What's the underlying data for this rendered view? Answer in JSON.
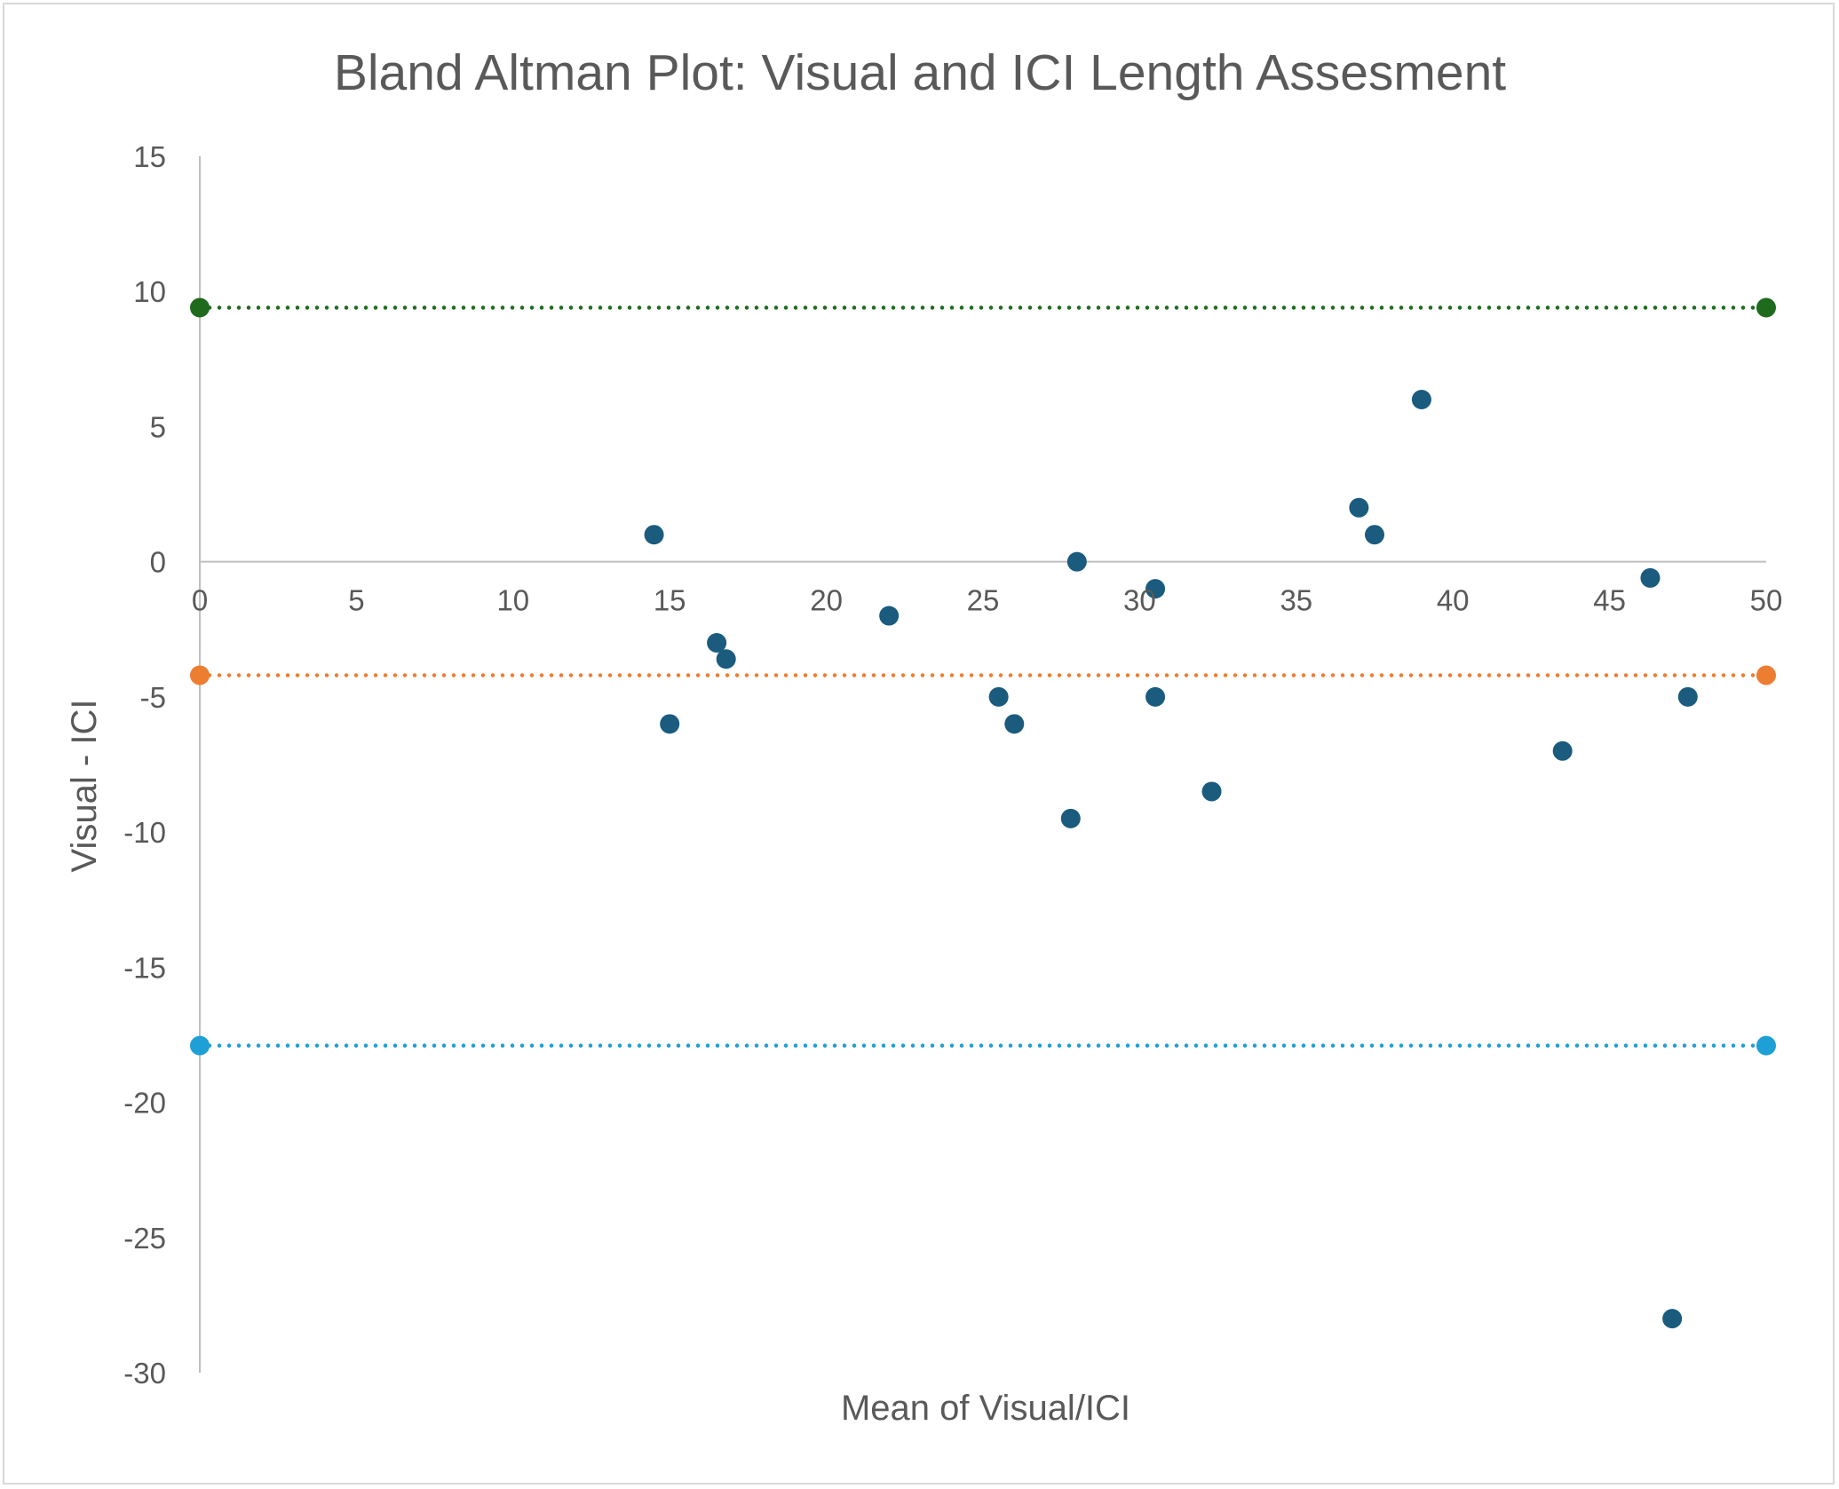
{
  "chart_data": {
    "type": "scatter",
    "title": "Bland Altman Plot: Visual and ICI Length Assesment",
    "xlabel": "Mean of Visual/ICI",
    "ylabel": "Visual - ICI",
    "xlim": [
      0,
      50
    ],
    "ylim": [
      -30,
      15
    ],
    "x_ticks": [
      0,
      5,
      10,
      15,
      20,
      25,
      30,
      35,
      40,
      45,
      50
    ],
    "y_ticks": [
      15,
      10,
      5,
      0,
      -5,
      -10,
      -15,
      -20,
      -25,
      -30
    ],
    "grid": false,
    "legend": "none",
    "series": [
      {
        "color": "#1a5b7e",
        "points": [
          {
            "x": 14.5,
            "y": 1
          },
          {
            "x": 15,
            "y": -6
          },
          {
            "x": 16.5,
            "y": -3
          },
          {
            "x": 16.8,
            "y": -3.6
          },
          {
            "x": 22,
            "y": -2
          },
          {
            "x": 25.5,
            "y": -5
          },
          {
            "x": 26,
            "y": -6
          },
          {
            "x": 27.8,
            "y": -9.5
          },
          {
            "x": 28,
            "y": 0
          },
          {
            "x": 30.5,
            "y": -1
          },
          {
            "x": 30.5,
            "y": -5
          },
          {
            "x": 32.3,
            "y": -8.5
          },
          {
            "x": 37,
            "y": 2
          },
          {
            "x": 37.5,
            "y": 1
          },
          {
            "x": 39,
            "y": 6
          },
          {
            "x": 43.5,
            "y": -7
          },
          {
            "x": 46.3,
            "y": -0.6
          },
          {
            "x": 47,
            "y": -28
          },
          {
            "x": 47.5,
            "y": -5
          }
        ]
      }
    ],
    "reference_lines": [
      {
        "y": 9.4,
        "x": [
          0,
          50
        ],
        "color": "#1e6b1e",
        "style": "dotted"
      },
      {
        "y": -4.2,
        "x": [
          0,
          50
        ],
        "color": "#ed7d31",
        "style": "dotted"
      },
      {
        "y": -17.9,
        "x": [
          0,
          50
        ],
        "color": "#1e9fd6",
        "style": "dotted"
      }
    ]
  }
}
